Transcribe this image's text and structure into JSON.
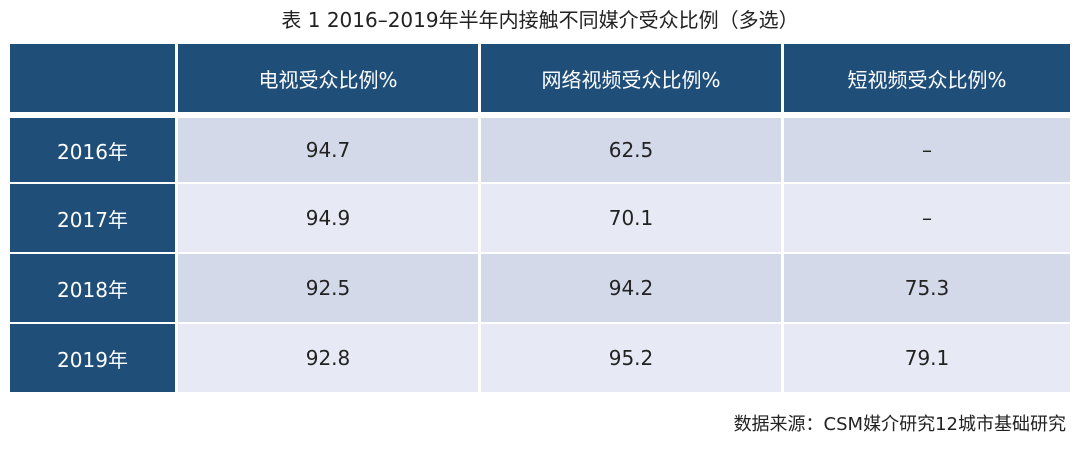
{
  "title": "表 1 2016–2019年半年内接触不同媒介受众比例（多选）",
  "table": {
    "columns": [
      "电视受众比例%",
      "网络视频受众比例%",
      "短视频受众比例%"
    ],
    "rows": [
      {
        "label": "2016年",
        "cells": [
          "94.7",
          "62.5",
          "–"
        ]
      },
      {
        "label": "2017年",
        "cells": [
          "94.9",
          "70.1",
          "–"
        ]
      },
      {
        "label": "2018年",
        "cells": [
          "92.5",
          "94.2",
          "75.3"
        ]
      },
      {
        "label": "2019年",
        "cells": [
          "92.8",
          "95.2",
          "79.1"
        ]
      }
    ]
  },
  "source": "数据来源：CSM媒介研究12城市基础研究"
}
